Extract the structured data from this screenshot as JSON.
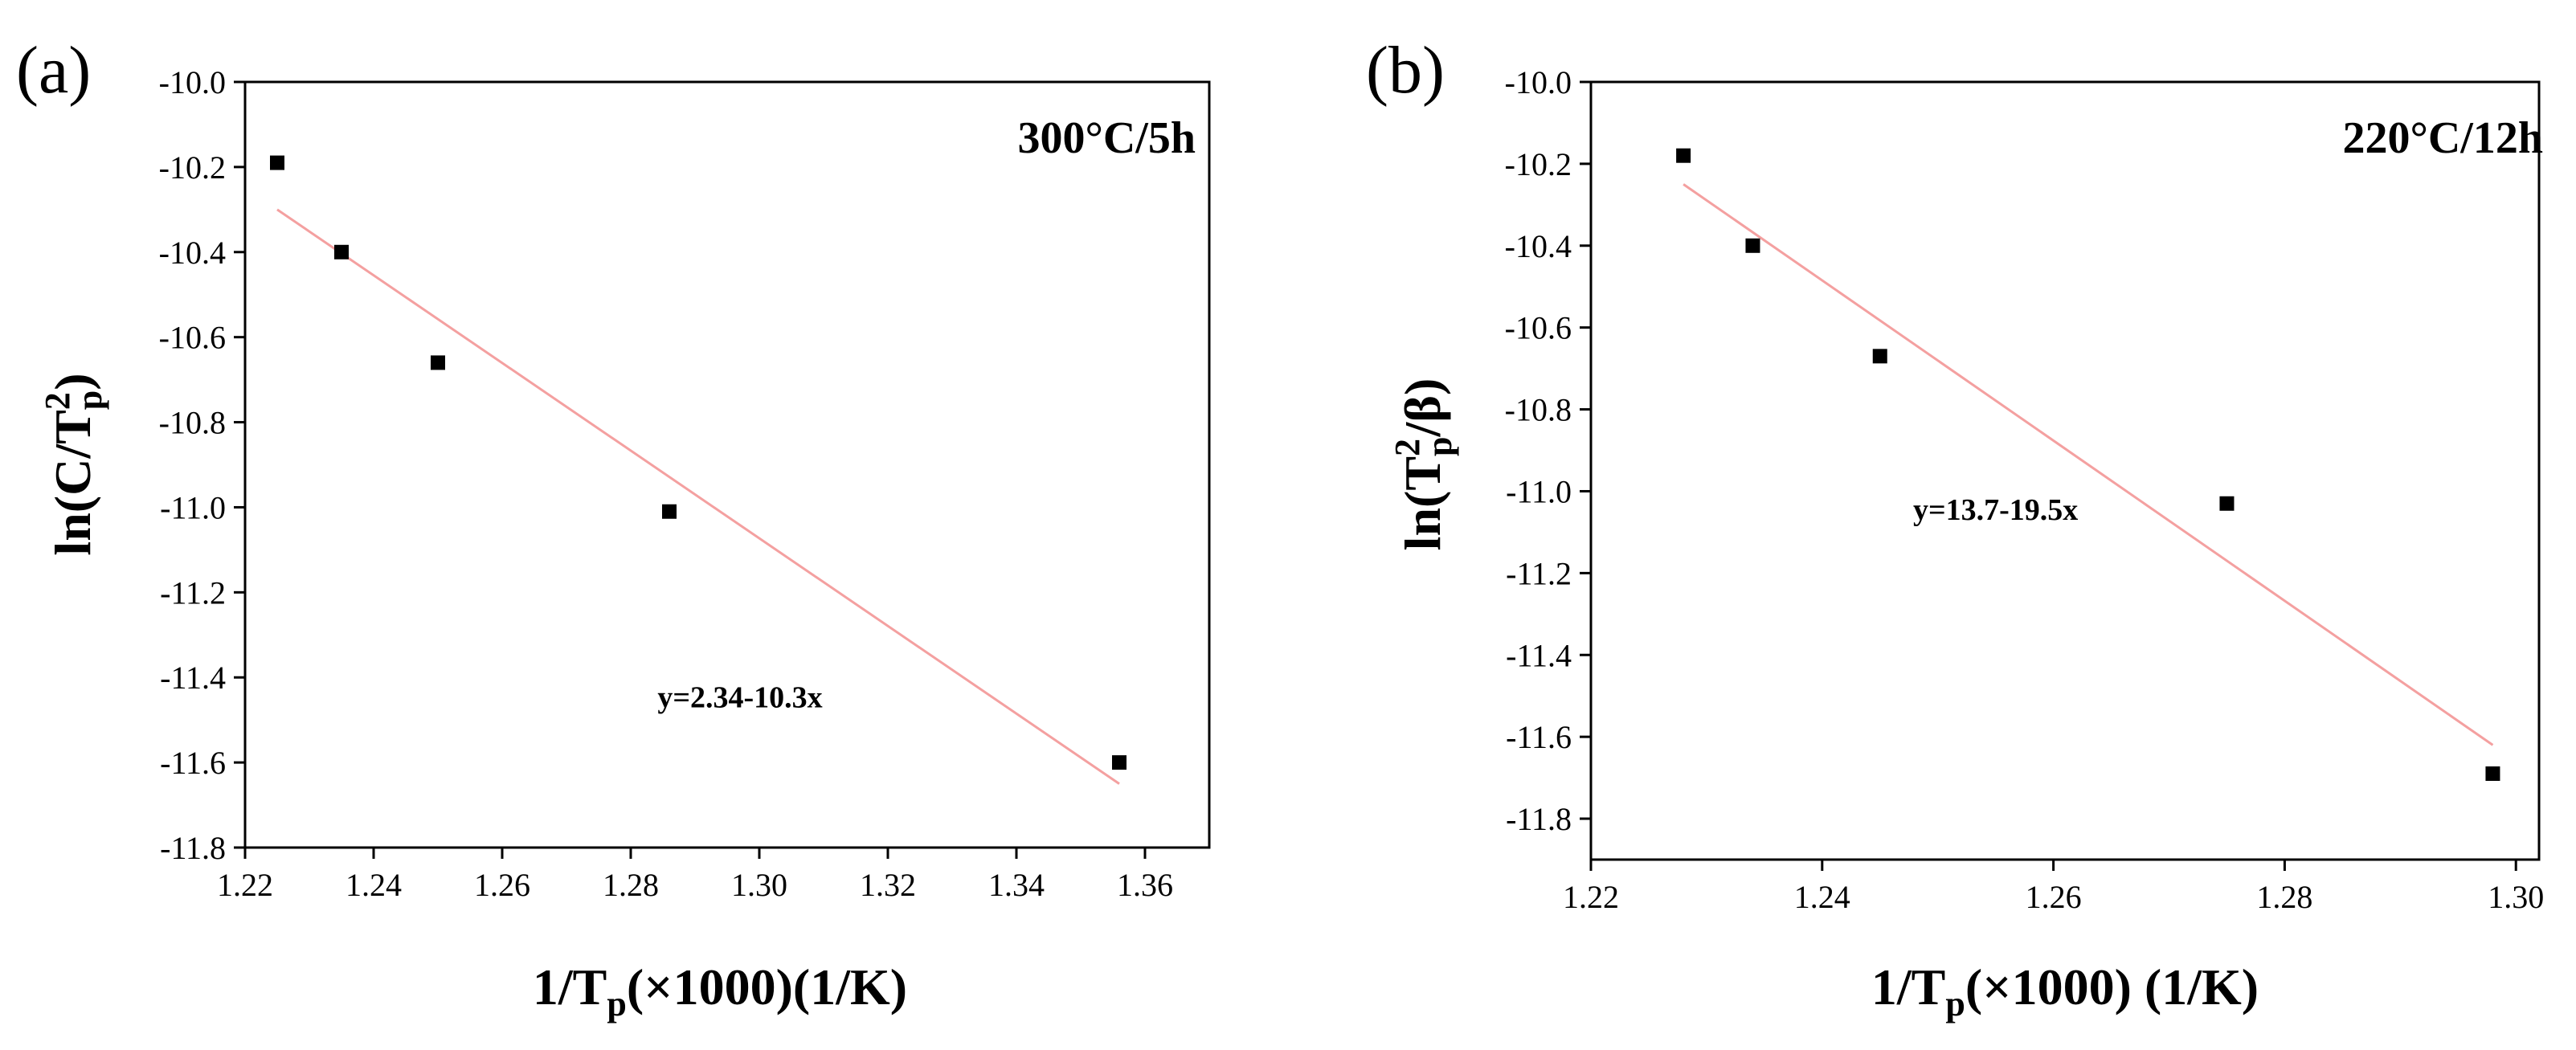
{
  "chart_data": [
    {
      "type": "scatter",
      "panel_label": "(a)",
      "condition": "300°C/5h",
      "xlabel": {
        "main": "1/T",
        "sub": "p",
        "rest": "(×1000)(1/K)"
      },
      "ylabel": {
        "pre": "ln(C/T",
        "sup": "2",
        "sub": "p",
        "post": ")"
      },
      "xlim": [
        1.22,
        1.37
      ],
      "ylim": [
        -11.8,
        -10.0
      ],
      "xticks": [
        1.22,
        1.24,
        1.26,
        1.28,
        1.3,
        1.32,
        1.34,
        1.36
      ],
      "xtick_labels": [
        "1.22",
        "1.24",
        "1.26",
        "1.28",
        "1.30",
        "1.32",
        "1.34",
        "1.36"
      ],
      "yticks": [
        -10.0,
        -10.2,
        -10.4,
        -10.6,
        -10.8,
        -11.0,
        -11.2,
        -11.4,
        -11.6,
        -11.8
      ],
      "ytick_labels": [
        "-10.0",
        "-10.2",
        "-10.4",
        "-10.6",
        "-10.8",
        "-11.0",
        "-11.2",
        "-11.4",
        "-11.6",
        "-11.8"
      ],
      "points": [
        {
          "x": 1.225,
          "y": -10.19
        },
        {
          "x": 1.235,
          "y": -10.4
        },
        {
          "x": 1.25,
          "y": -10.66
        },
        {
          "x": 1.286,
          "y": -11.01
        },
        {
          "x": 1.356,
          "y": -11.6
        }
      ],
      "fit": {
        "x": [
          1.225,
          1.356
        ],
        "y": [
          -10.3,
          -11.65
        ]
      },
      "equation": "y=2.34-10.3x",
      "equation_pos": {
        "x": 1.297,
        "y": -11.47
      },
      "colors": {
        "points": "#000000",
        "fit": "#f4a0a0"
      }
    },
    {
      "type": "scatter",
      "panel_label": "(b)",
      "condition": "220°C/12h",
      "xlabel": {
        "main": "1/T",
        "sub": "p",
        "rest": "(×1000) (1/K)"
      },
      "ylabel": {
        "pre": "ln(T",
        "sup": "2",
        "sub": "p",
        "post": "/β)"
      },
      "xlim": [
        1.22,
        1.302
      ],
      "ylim": [
        -11.9,
        -10.0
      ],
      "xticks": [
        1.22,
        1.24,
        1.26,
        1.28,
        1.3
      ],
      "xtick_labels": [
        "1.22",
        "1.24",
        "1.26",
        "1.28",
        "1.30"
      ],
      "yticks": [
        -10.0,
        -10.2,
        -10.4,
        -10.6,
        -10.8,
        -11.0,
        -11.2,
        -11.4,
        -11.6,
        -11.8
      ],
      "ytick_labels": [
        "-10.0",
        "-10.2",
        "-10.4",
        "-10.6",
        "-10.8",
        "-11.0",
        "-11.2",
        "-11.4",
        "-11.6",
        "-11.8"
      ],
      "points": [
        {
          "x": 1.228,
          "y": -10.18
        },
        {
          "x": 1.234,
          "y": -10.4
        },
        {
          "x": 1.245,
          "y": -10.67
        },
        {
          "x": 1.275,
          "y": -11.03
        },
        {
          "x": 1.298,
          "y": -11.69
        }
      ],
      "fit": {
        "x": [
          1.228,
          1.298
        ],
        "y": [
          -10.25,
          -11.62
        ]
      },
      "equation": "y=13.7-19.5x",
      "equation_pos": {
        "x": 1.255,
        "y": -11.07
      },
      "colors": {
        "points": "#000000",
        "fit": "#f4a0a0"
      }
    }
  ]
}
